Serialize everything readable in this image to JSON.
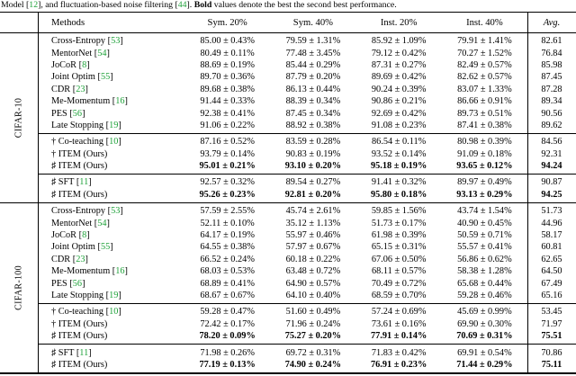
{
  "colors": {
    "citation_green": "#1fa23a",
    "text": "#000000",
    "background": "#ffffff"
  },
  "caption": {
    "parts": [
      {
        "text": "Model [",
        "style": "normal"
      },
      {
        "text": "12",
        "style": "cite"
      },
      {
        "text": "], and fluctuation-based noise filtering [",
        "style": "normal"
      },
      {
        "text": "44",
        "style": "cite"
      },
      {
        "text": "]. ",
        "style": "normal"
      },
      {
        "text": "Bold",
        "style": "bold"
      },
      {
        "text": " values denote the best the second best performance.",
        "style": "normal"
      }
    ]
  },
  "table": {
    "header": {
      "methods": "Methods",
      "cols": [
        "Sym. 20%",
        "Sym. 40%",
        "Inst. 20%",
        "Inst. 40%"
      ],
      "avg": "Avg."
    },
    "sections": [
      {
        "label": "CIFAR-10",
        "groups": [
          [
            {
              "prefix": "",
              "name": "Cross-Entropy",
              "ref": "53",
              "values": [
                "85.00 ± 0.43%",
                "79.59 ± 1.31%",
                "85.92 ± 1.09%",
                "79.91 ± 1.41%"
              ],
              "avg": "82.61",
              "bold": false
            },
            {
              "prefix": "",
              "name": "MentorNet",
              "ref": "54",
              "values": [
                "80.49 ± 0.11%",
                "77.48 ± 3.45%",
                "79.12 ± 0.42%",
                "70.27 ± 1.52%"
              ],
              "avg": "76.84",
              "bold": false
            },
            {
              "prefix": "",
              "name": "JoCoR",
              "ref": "8",
              "values": [
                "88.69 ± 0.19%",
                "85.44 ± 0.29%",
                "87.31 ± 0.27%",
                "82.49 ± 0.57%"
              ],
              "avg": "85.98",
              "bold": false
            },
            {
              "prefix": "",
              "name": "Joint Optim",
              "ref": "55",
              "values": [
                "89.70 ± 0.36%",
                "87.79 ± 0.20%",
                "89.69 ± 0.42%",
                "82.62 ± 0.57%"
              ],
              "avg": "87.45",
              "bold": false
            },
            {
              "prefix": "",
              "name": "CDR",
              "ref": "23",
              "values": [
                "89.68 ± 0.38%",
                "86.13 ± 0.44%",
                "90.24 ± 0.39%",
                "83.07 ± 1.33%"
              ],
              "avg": "87.28",
              "bold": false
            },
            {
              "prefix": "",
              "name": "Me-Momentum",
              "ref": "16",
              "values": [
                "91.44 ± 0.33%",
                "88.39 ± 0.34%",
                "90.86 ± 0.21%",
                "86.66 ± 0.91%"
              ],
              "avg": "89.34",
              "bold": false
            },
            {
              "prefix": "",
              "name": "PES",
              "ref": "56",
              "values": [
                "92.38 ± 0.41%",
                "87.45 ± 0.34%",
                "92.69 ± 0.42%",
                "89.73 ± 0.51%"
              ],
              "avg": "90.56",
              "bold": false
            },
            {
              "prefix": "",
              "name": "Late Stopping",
              "ref": "19",
              "values": [
                "91.06 ± 0.22%",
                "88.92 ± 0.38%",
                "91.08 ± 0.23%",
                "87.41 ± 0.38%"
              ],
              "avg": "89.62",
              "bold": false
            }
          ],
          [
            {
              "prefix": "†",
              "name": "Co-teaching",
              "ref": "10",
              "values": [
                "87.16 ± 0.52%",
                "83.59 ± 0.28%",
                "86.54 ± 0.11%",
                "80.98 ± 0.39%"
              ],
              "avg": "84.56",
              "bold": false
            },
            {
              "prefix": "†",
              "name": "ITEM (Ours)",
              "ref": null,
              "values": [
                "93.79 ± 0.14%",
                "90.83 ± 0.19%",
                "93.52 ± 0.14%",
                "91.09 ± 0.18%"
              ],
              "avg": "92.31",
              "bold": false
            },
            {
              "prefix": "♯",
              "name": "ITEM (Ours)",
              "ref": null,
              "values": [
                "95.01 ± 0.21%",
                "93.10 ± 0.20%",
                "95.18 ± 0.19%",
                "93.65 ± 0.12%"
              ],
              "avg": "94.24",
              "bold": true
            }
          ],
          [
            {
              "prefix": "♯",
              "name": "SFT",
              "ref": "11",
              "values": [
                "92.57 ± 0.32%",
                "89.54 ± 0.27%",
                "91.41 ± 0.32%",
                "89.97 ± 0.49%"
              ],
              "avg": "90.87",
              "bold": false
            },
            {
              "prefix": "♯",
              "name": "ITEM (Ours)",
              "ref": null,
              "values": [
                "95.26 ± 0.23%",
                "92.81 ± 0.20%",
                "95.80 ± 0.18%",
                "93.13 ± 0.29%"
              ],
              "avg": "94.25",
              "bold": true
            }
          ]
        ]
      },
      {
        "label": "CIFAR-100",
        "groups": [
          [
            {
              "prefix": "",
              "name": "Cross-Entropy",
              "ref": "53",
              "values": [
                "57.59 ± 2.55%",
                "45.74 ± 2.61%",
                "59.85 ± 1.56%",
                "43.74 ± 1.54%"
              ],
              "avg": "51.73",
              "bold": false
            },
            {
              "prefix": "",
              "name": "MentorNet",
              "ref": "54",
              "values": [
                "52.11 ± 0.10%",
                "35.12 ± 1.13%",
                "51.73 ± 0.17%",
                "40.90 ± 0.45%"
              ],
              "avg": "44.96",
              "bold": false
            },
            {
              "prefix": "",
              "name": "JoCoR",
              "ref": "8",
              "values": [
                "64.17 ± 0.19%",
                "55.97 ± 0.46%",
                "61.98 ± 0.39%",
                "50.59 ± 0.71%"
              ],
              "avg": "58.17",
              "bold": false
            },
            {
              "prefix": "",
              "name": "Joint Optim",
              "ref": "55",
              "values": [
                "64.55 ± 0.38%",
                "57.97 ± 0.67%",
                "65.15 ± 0.31%",
                "55.57 ± 0.41%"
              ],
              "avg": "60.81",
              "bold": false
            },
            {
              "prefix": "",
              "name": "CDR",
              "ref": "23",
              "values": [
                "66.52 ± 0.24%",
                "60.18 ± 0.22%",
                "67.06 ± 0.50%",
                "56.86 ± 0.62%"
              ],
              "avg": "62.65",
              "bold": false
            },
            {
              "prefix": "",
              "name": "Me-Momentum",
              "ref": "16",
              "values": [
                "68.03 ± 0.53%",
                "63.48 ± 0.72%",
                "68.11 ± 0.57%",
                "58.38 ± 1.28%"
              ],
              "avg": "64.50",
              "bold": false
            },
            {
              "prefix": "",
              "name": "PES",
              "ref": "56",
              "values": [
                "68.89 ± 0.41%",
                "64.90 ± 0.57%",
                "70.49 ± 0.72%",
                "65.68 ± 0.44%"
              ],
              "avg": "67.49",
              "bold": false
            },
            {
              "prefix": "",
              "name": "Late Stopping",
              "ref": "19",
              "values": [
                "68.67 ± 0.67%",
                "64.10 ± 0.40%",
                "68.59 ± 0.70%",
                "59.28 ± 0.46%"
              ],
              "avg": "65.16",
              "bold": false
            }
          ],
          [
            {
              "prefix": "†",
              "name": "Co-teaching",
              "ref": "10",
              "values": [
                "59.28 ± 0.47%",
                "51.60 ± 0.49%",
                "57.24 ± 0.69%",
                "45.69 ± 0.99%"
              ],
              "avg": "53.45",
              "bold": false
            },
            {
              "prefix": "†",
              "name": "ITEM (Ours)",
              "ref": null,
              "values": [
                "72.42 ± 0.17%",
                "71.96 ± 0.24%",
                "73.61 ± 0.16%",
                "69.90 ± 0.30%"
              ],
              "avg": "71.97",
              "bold": false
            },
            {
              "prefix": "♯",
              "name": "ITEM (Ours)",
              "ref": null,
              "values": [
                "78.20 ± 0.09%",
                "75.27 ± 0.20%",
                "77.91 ± 0.14%",
                "70.69 ± 0.31%"
              ],
              "avg": "75.51",
              "bold": true
            }
          ],
          [
            {
              "prefix": "♯",
              "name": "SFT",
              "ref": "11",
              "values": [
                "71.98 ± 0.26%",
                "69.72 ± 0.31%",
                "71.83 ± 0.42%",
                "69.91 ± 0.54%"
              ],
              "avg": "70.86",
              "bold": false
            },
            {
              "prefix": "♯",
              "name": "ITEM (Ours)",
              "ref": null,
              "values": [
                "77.19 ± 0.13%",
                "74.90 ± 0.24%",
                "76.91 ± 0.23%",
                "71.44 ± 0.29%"
              ],
              "avg": "75.11",
              "bold": true
            }
          ]
        ]
      }
    ]
  }
}
